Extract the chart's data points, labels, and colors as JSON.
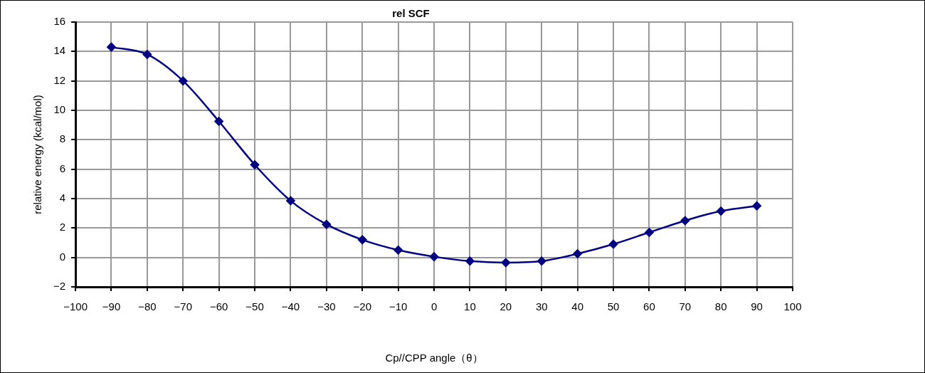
{
  "chart_data": {
    "type": "line",
    "title": "rel SCF",
    "xlabel": "Cp//CPP angle（θ）",
    "ylabel": "relative energy (kcal/mol)",
    "x": [
      -90,
      -80,
      -70,
      -60,
      -50,
      -40,
      -30,
      -20,
      -10,
      0,
      10,
      20,
      30,
      40,
      50,
      60,
      70,
      80,
      90
    ],
    "series": [
      {
        "color": "#000080",
        "values": [
          14.3,
          13.8,
          12.0,
          9.25,
          6.3,
          3.85,
          2.25,
          1.2,
          0.5,
          0.05,
          -0.25,
          -0.35,
          -0.25,
          0.25,
          0.9,
          1.7,
          2.5,
          3.15,
          3.5
        ]
      }
    ],
    "xlim": [
      -100,
      100
    ],
    "xticks": [
      {
        "value": -100,
        "label": "−100"
      },
      {
        "value": -90,
        "label": "−90"
      },
      {
        "value": -80,
        "label": "−80"
      },
      {
        "value": -70,
        "label": "−70"
      },
      {
        "value": -60,
        "label": "−60"
      },
      {
        "value": -50,
        "label": "−50"
      },
      {
        "value": -40,
        "label": "−40"
      },
      {
        "value": -30,
        "label": "−30"
      },
      {
        "value": -20,
        "label": "−20"
      },
      {
        "value": -10,
        "label": "−10"
      },
      0,
      10,
      20,
      30,
      40,
      50,
      60,
      70,
      80,
      90,
      100
    ],
    "ylim": [
      -2,
      16
    ],
    "yticks": [
      {
        "value": -2,
        "label": "−2"
      },
      0,
      2,
      4,
      6,
      8,
      10,
      12,
      14,
      16
    ],
    "grid": true,
    "legend": false,
    "marker": "diamond",
    "line_style": "solid"
  }
}
